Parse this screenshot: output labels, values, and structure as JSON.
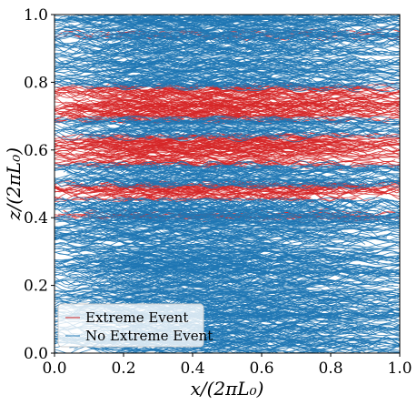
{
  "chart_data": {
    "type": "line",
    "title": "",
    "xlabel": "x/(2πL₀)",
    "ylabel": "z/(2πL₀)",
    "xlim": [
      0.0,
      1.0
    ],
    "ylim": [
      0.0,
      1.0
    ],
    "x_ticks": [
      "0.0",
      "0.2",
      "0.4",
      "0.6",
      "0.8",
      "1.0"
    ],
    "y_ticks": [
      "0.0",
      "0.2",
      "0.4",
      "0.6",
      "0.8",
      "1.0"
    ],
    "grid": false,
    "legend_position": "bottom-left",
    "series": [
      {
        "name": "Extreme Event",
        "color": "#d62728",
        "z_bands": [
          [
            0.94,
            0.942
          ],
          [
            0.69,
            0.79
          ],
          [
            0.555,
            0.64
          ],
          [
            0.455,
            0.5
          ],
          [
            0.4,
            0.415
          ]
        ]
      },
      {
        "name": "No Extreme Event",
        "color": "#1f77b4",
        "z_bands": [
          [
            0.0,
            0.14
          ],
          [
            0.14,
            0.27
          ],
          [
            0.27,
            0.45
          ],
          [
            0.5,
            0.555
          ],
          [
            0.64,
            0.69
          ],
          [
            0.79,
            1.0
          ]
        ]
      }
    ]
  }
}
